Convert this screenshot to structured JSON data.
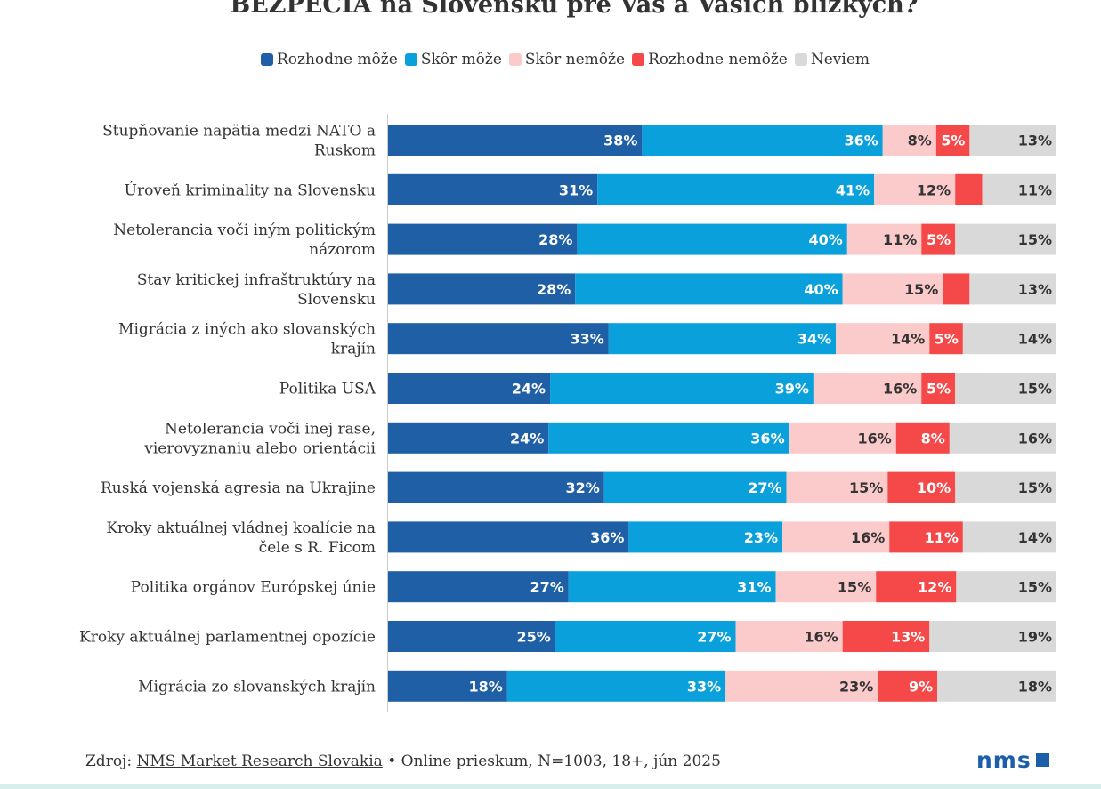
{
  "title": "BEZPECIA na Slovensku pre Vás a Vašich blízkych?",
  "colors": {
    "rozhodne_moze": "#1f5fa6",
    "skor_moze": "#0aa0dc",
    "skor_nemoze": "#fbcaca",
    "rozhodne_nemoze": "#f54848",
    "neviem": "#d9d9d9",
    "baseline": "#cccccc"
  },
  "legend": [
    {
      "label": "Rozhodne môže",
      "color_key": "rozhodne_moze"
    },
    {
      "label": "Skôr môže",
      "color_key": "skor_moze"
    },
    {
      "label": "Skôr nemôže",
      "color_key": "skor_nemoze"
    },
    {
      "label": "Rozhodne nemôže",
      "color_key": "rozhodne_nemoze"
    },
    {
      "label": "Neviem",
      "color_key": "neviem"
    }
  ],
  "chart_data": {
    "type": "bar",
    "orientation": "horizontal",
    "stacked": true,
    "title": "BEZPECIA na Slovensku pre Vás a Vašich blízkych?",
    "xlim": [
      0,
      100
    ],
    "categories": [
      [
        "Stupňovanie napätia medzi NATO a",
        "Ruskom"
      ],
      [
        "Úroveň kriminality na Slovensku"
      ],
      [
        "Netolerancia voči iným politickým",
        "názorom"
      ],
      [
        "Stav kritickej infraštruktúry na",
        "Slovensku"
      ],
      [
        "Migrácia z iných ako slovanských",
        "krajín"
      ],
      [
        "Politika USA"
      ],
      [
        "Netolerancia voči inej rase,",
        "vierovyznaniu alebo orientácii"
      ],
      [
        "Ruská vojenská agresia na Ukrajine"
      ],
      [
        "Kroky aktuálnej vládnej koalície na",
        "čele s R. Ficom"
      ],
      [
        "Politika orgánov Európskej únie"
      ],
      [
        "Kroky aktuálnej parlamentnej opozície"
      ],
      [
        "Migrácia zo slovanských krajín"
      ]
    ],
    "series": [
      {
        "name": "Rozhodne môže",
        "color_key": "rozhodne_moze",
        "label_color": "#ffffff",
        "values": [
          38,
          31,
          28,
          28,
          33,
          24,
          24,
          32,
          36,
          27,
          25,
          18
        ],
        "labels": [
          "38%",
          "31%",
          "28%",
          "28%",
          "33%",
          "24%",
          "24%",
          "32%",
          "36%",
          "27%",
          "25%",
          "18%"
        ]
      },
      {
        "name": "Skôr môže",
        "color_key": "skor_moze",
        "label_color": "#ffffff",
        "values": [
          36,
          41,
          40,
          40,
          34,
          39,
          36,
          27,
          23,
          31,
          27,
          33
        ],
        "labels": [
          "36%",
          "41%",
          "40%",
          "40%",
          "34%",
          "39%",
          "36%",
          "27%",
          "23%",
          "31%",
          "27%",
          "33%"
        ]
      },
      {
        "name": "Skôr nemôže",
        "color_key": "skor_nemoze",
        "label_color": "#333333",
        "values": [
          8,
          12,
          11,
          15,
          14,
          16,
          16,
          15,
          16,
          15,
          16,
          23
        ],
        "labels": [
          "8%",
          "12%",
          "11%",
          "15%",
          "14%",
          "16%",
          "16%",
          "15%",
          "16%",
          "15%",
          "16%",
          "23%"
        ]
      },
      {
        "name": "Rozhodne nemôže",
        "color_key": "rozhodne_nemoze",
        "label_color": "#ffffff",
        "values": [
          5,
          4,
          5,
          4,
          5,
          5,
          8,
          10,
          11,
          12,
          13,
          9
        ],
        "labels": [
          "5%",
          "",
          "5%",
          "",
          "5%",
          "5%",
          "8%",
          "10%",
          "11%",
          "12%",
          "13%",
          "9%"
        ]
      },
      {
        "name": "Neviem",
        "color_key": "neviem",
        "label_color": "#333333",
        "values": [
          13,
          11,
          15,
          13,
          14,
          15,
          16,
          15,
          14,
          15,
          19,
          18
        ],
        "labels": [
          "13%",
          "11%",
          "15%",
          "13%",
          "14%",
          "15%",
          "16%",
          "15%",
          "14%",
          "15%",
          "19%",
          "18%"
        ]
      }
    ]
  },
  "source": {
    "prefix": "Zdroj:",
    "link_text": "NMS Market Research Slovakia",
    "suffix": "• Online prieskum, N=1003, 18+, jún 2025"
  },
  "logo_text": "nms"
}
